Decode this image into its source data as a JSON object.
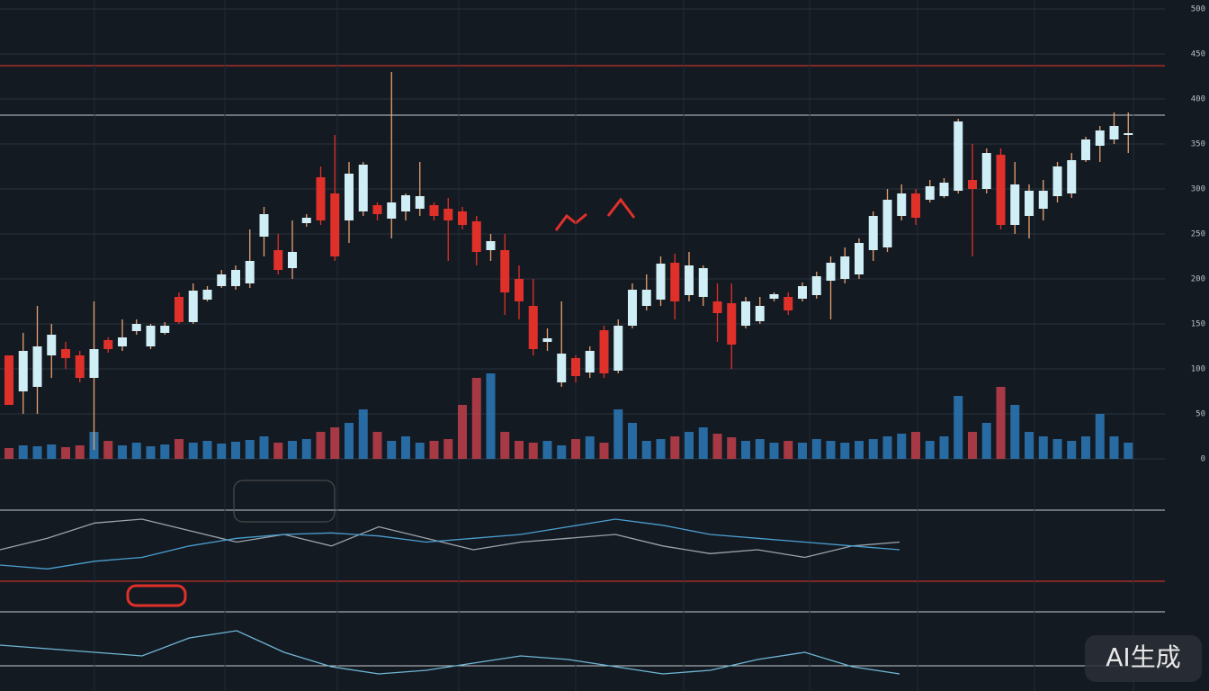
{
  "chart_data": {
    "type": "candlestick",
    "ylim": [
      0,
      500
    ],
    "yticks": [
      0,
      50,
      100,
      150,
      200,
      250,
      300,
      350,
      400,
      450,
      500
    ],
    "grid": true,
    "up_color": "#cfeef5",
    "down_color": "#e0302a",
    "open": [
      115,
      75,
      80,
      115,
      122,
      115,
      90,
      132,
      125,
      142,
      125,
      140,
      180,
      152,
      177,
      192,
      192,
      195,
      247,
      232,
      212,
      262,
      313,
      295,
      265,
      275,
      282,
      267,
      275,
      278,
      282,
      278,
      275,
      264,
      232,
      232,
      200,
      170,
      130,
      85,
      112,
      96,
      143,
      98,
      148,
      170,
      177,
      218,
      182,
      180,
      175,
      173,
      148,
      153,
      178,
      180,
      178,
      182,
      198,
      200,
      205,
      232,
      235,
      270,
      295,
      288,
      292,
      298,
      310,
      300,
      338,
      260,
      270,
      278,
      292,
      295,
      332,
      348,
      355,
      360
    ],
    "high": [
      115,
      140,
      170,
      150,
      130,
      120,
      175,
      135,
      155,
      155,
      150,
      152,
      185,
      195,
      192,
      210,
      215,
      255,
      280,
      250,
      265,
      272,
      325,
      360,
      330,
      330,
      285,
      430,
      295,
      330,
      285,
      290,
      280,
      270,
      250,
      250,
      215,
      200,
      145,
      175,
      115,
      125,
      148,
      155,
      195,
      205,
      225,
      228,
      230,
      215,
      195,
      195,
      180,
      180,
      185,
      185,
      196,
      208,
      225,
      235,
      245,
      275,
      300,
      305,
      300,
      310,
      312,
      378,
      350,
      345,
      345,
      330,
      305,
      310,
      330,
      340,
      358,
      370,
      385,
      385
    ],
    "low": [
      60,
      50,
      50,
      90,
      100,
      85,
      10,
      118,
      120,
      138,
      122,
      138,
      150,
      150,
      175,
      190,
      188,
      190,
      225,
      205,
      200,
      258,
      260,
      220,
      240,
      270,
      265,
      245,
      265,
      270,
      265,
      220,
      255,
      215,
      220,
      160,
      155,
      115,
      120,
      80,
      85,
      90,
      90,
      95,
      145,
      165,
      170,
      155,
      175,
      170,
      130,
      100,
      145,
      150,
      175,
      160,
      175,
      178,
      155,
      195,
      200,
      220,
      230,
      265,
      260,
      285,
      290,
      295,
      225,
      295,
      255,
      250,
      245,
      265,
      285,
      290,
      330,
      330,
      350,
      340
    ],
    "close": [
      60,
      120,
      125,
      138,
      112,
      90,
      122,
      122,
      135,
      150,
      148,
      148,
      152,
      187,
      188,
      205,
      210,
      220,
      272,
      210,
      230,
      268,
      265,
      225,
      317,
      327,
      272,
      285,
      293,
      292,
      270,
      265,
      260,
      230,
      242,
      185,
      175,
      122,
      134,
      117,
      92,
      120,
      95,
      148,
      188,
      188,
      217,
      175,
      215,
      212,
      162,
      127,
      175,
      170,
      183,
      165,
      192,
      203,
      218,
      225,
      240,
      270,
      288,
      295,
      268,
      303,
      307,
      375,
      300,
      340,
      260,
      305,
      298,
      298,
      325,
      332,
      355,
      365,
      370,
      362
    ],
    "volume": {
      "ylim": [
        0,
        100
      ],
      "up_color": "#2a7ab8",
      "down_color": "#c0404a",
      "values": [
        12,
        15,
        14,
        16,
        13,
        15,
        30,
        20,
        15,
        18,
        14,
        16,
        22,
        18,
        20,
        17,
        19,
        21,
        25,
        18,
        20,
        22,
        30,
        35,
        40,
        55,
        30,
        20,
        25,
        18,
        20,
        22,
        60,
        90,
        95,
        30,
        20,
        18,
        20,
        15,
        22,
        25,
        18,
        55,
        40,
        20,
        22,
        25,
        30,
        35,
        28,
        24,
        20,
        22,
        18,
        20,
        18,
        22,
        20,
        18,
        20,
        22,
        25,
        28,
        30,
        20,
        25,
        70,
        30,
        40,
        80,
        60,
        30,
        25,
        22,
        20,
        25,
        50,
        25,
        18
      ]
    },
    "oscillator_1": {
      "ylim": [
        0,
        100
      ],
      "series": [
        {
          "color": "#9aa4ad",
          "values": [
            40,
            55,
            75,
            80,
            65,
            50,
            60,
            45,
            70,
            55,
            40,
            50,
            55,
            60,
            45,
            35,
            40,
            30,
            45,
            50
          ]
        },
        {
          "color": "#4a9fd0",
          "values": [
            20,
            15,
            25,
            30,
            45,
            55,
            60,
            62,
            58,
            50,
            55,
            60,
            70,
            80,
            72,
            60,
            55,
            50,
            45,
            40
          ]
        }
      ]
    },
    "oscillator_2": {
      "ylim": [
        0,
        100
      ],
      "series": [
        {
          "color": "#6fb7d6",
          "values": [
            60,
            55,
            50,
            45,
            70,
            80,
            50,
            30,
            20,
            25,
            35,
            45,
            40,
            30,
            20,
            25,
            40,
            50,
            30,
            20
          ]
        }
      ]
    },
    "watermark": "AI生成"
  }
}
